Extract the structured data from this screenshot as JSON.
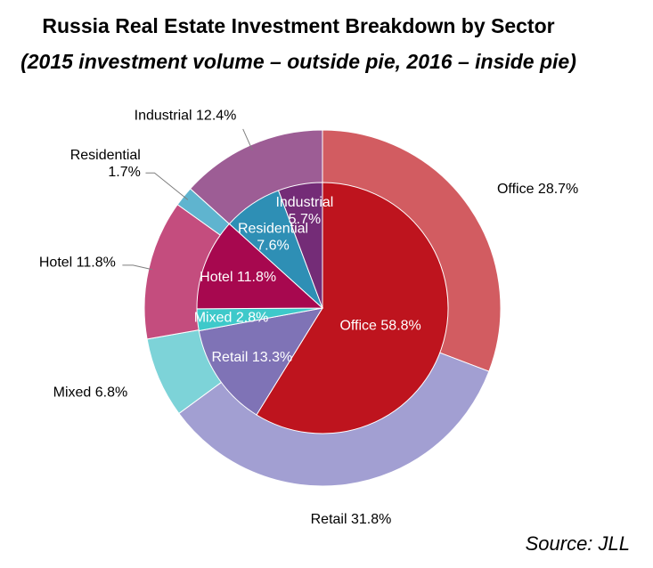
{
  "chart_data": {
    "type": "pie",
    "title": "Russia Real Estate Investment Breakdown by Sector",
    "subtitle": "(2015 investment volume – outside pie, 2016 – inside pie)",
    "source": "Source: JLL",
    "series": [
      {
        "name": "2016",
        "ring": "inside",
        "slices": [
          {
            "label": "Office",
            "value": 58.8,
            "color": "#be141e",
            "text": "Office 58.8%"
          },
          {
            "label": "Retail",
            "value": 13.3,
            "color": "#7f73b6",
            "text": "Retail 13.3%"
          },
          {
            "label": "Mixed",
            "value": 2.8,
            "color": "#3ec9ca",
            "text": "Mixed 2.8%"
          },
          {
            "label": "Hotel",
            "value": 11.8,
            "color": "#a7084f",
            "text": "Hotel 11.8%"
          },
          {
            "label": "Residential",
            "value": 7.6,
            "color": "#2e8fb5",
            "text": [
              "Residential",
              "7.6%"
            ]
          },
          {
            "label": "Industrial",
            "value": 5.7,
            "color": "#742c77",
            "text": [
              "Industrial",
              "5.7%"
            ]
          }
        ]
      },
      {
        "name": "2015",
        "ring": "outside",
        "slices": [
          {
            "label": "Office",
            "value": 28.7,
            "color": "#d25c61",
            "text": "Office 28.7%"
          },
          {
            "label": "Retail",
            "value": 31.8,
            "color": "#a29fd2",
            "text": "Retail 31.8%"
          },
          {
            "label": "Mixed",
            "value": 6.8,
            "color": "#7dd3d8",
            "text": "Mixed 6.8%"
          },
          {
            "label": "Hotel",
            "value": 11.8,
            "color": "#c44d7e",
            "text": "Hotel 11.8%"
          },
          {
            "label": "Residential",
            "value": 1.7,
            "color": "#5fb4cf",
            "text": [
              "Residential",
              "1.7%"
            ]
          },
          {
            "label": "Industrial",
            "value": 12.4,
            "color": "#9d5d95",
            "text": "Industrial 12.4%"
          }
        ]
      }
    ]
  }
}
